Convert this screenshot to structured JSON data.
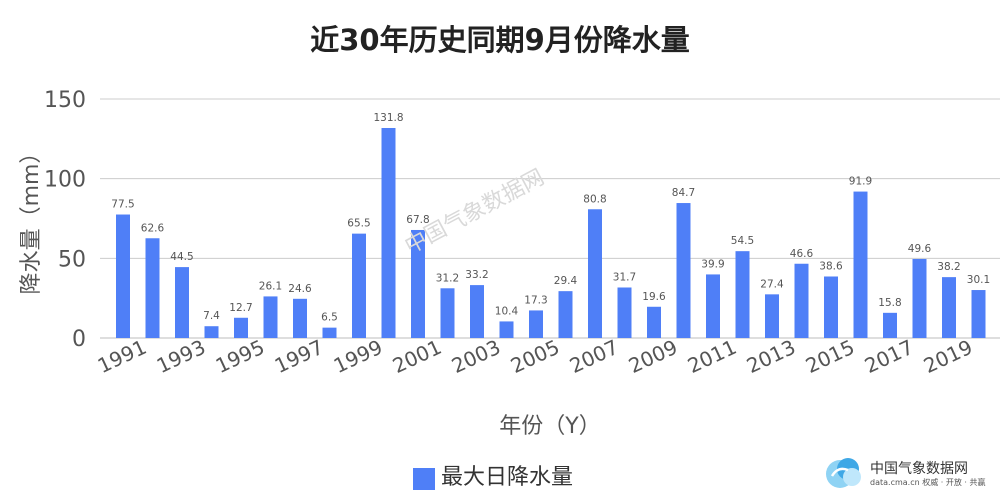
{
  "chart_data": {
    "type": "bar",
    "title": "近30年历史同期9月份降水量",
    "xlabel": "年份（Y）",
    "ylabel": "降水量（mm）",
    "ylim": [
      0,
      150
    ],
    "yticks": [
      0,
      50,
      100,
      150
    ],
    "grid": true,
    "legend_position": "bottom",
    "x_tick_labels": [
      "1991",
      "1993",
      "1995",
      "1997",
      "1999",
      "2001",
      "2003",
      "2005",
      "2007",
      "2009",
      "2011",
      "2013",
      "2015",
      "2017",
      "2019"
    ],
    "categories": [
      "1991",
      "1992",
      "1993",
      "1994",
      "1995",
      "1996",
      "1997",
      "1998",
      "1999",
      "2000",
      "2001",
      "2002",
      "2003",
      "2004",
      "2005",
      "2006",
      "2007",
      "2008",
      "2009",
      "2010",
      "2011",
      "2012",
      "2013",
      "2014",
      "2015",
      "2016",
      "2017",
      "2018",
      "2019",
      "2020"
    ],
    "series": [
      {
        "name": "最大日降水量",
        "color": "#4f7ff7",
        "values": [
          77.5,
          62.6,
          44.5,
          7.4,
          12.7,
          26.1,
          24.6,
          6.5,
          65.5,
          131.8,
          67.8,
          31.2,
          33.2,
          10.4,
          17.3,
          29.4,
          80.8,
          31.7,
          19.6,
          84.7,
          39.9,
          54.5,
          27.4,
          46.6,
          38.6,
          91.9,
          15.8,
          49.6,
          38.2,
          30.1
        ]
      }
    ]
  },
  "branding": {
    "name": "中国气象数据网",
    "url_text": "data.cma.cn 权威 · 开放 · 共赢",
    "watermark_text": "中国气象数据网"
  }
}
